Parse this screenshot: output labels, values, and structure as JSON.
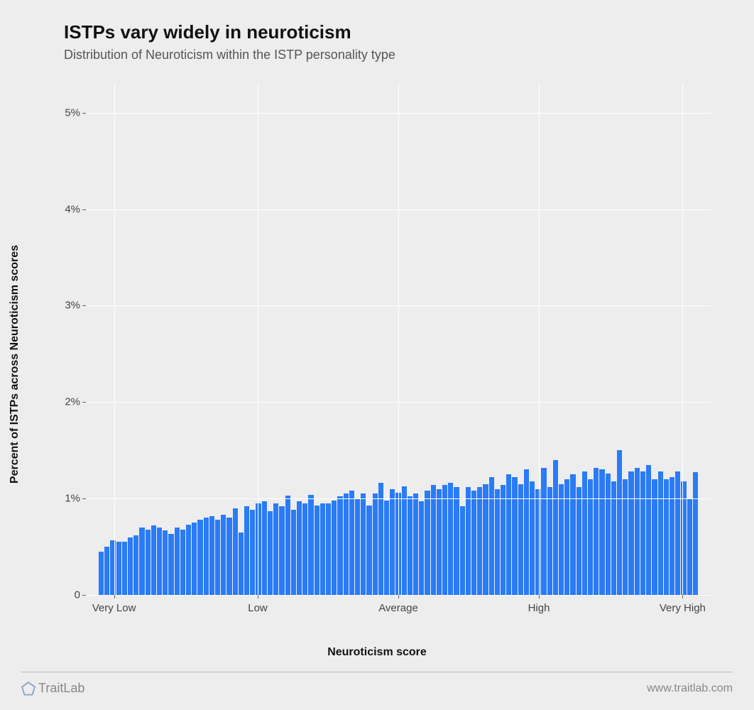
{
  "chart": {
    "type": "histogram",
    "title": "ISTPs vary widely in neuroticism",
    "subtitle": "Distribution of Neuroticism within the ISTP personality type",
    "xlabel": "Neuroticism score",
    "ylabel": "Percent of ISTPs across Neuroticism scores",
    "background_color": "#ededed",
    "grid_color": "#ffffff",
    "bar_color": "#2a7bf6",
    "text_color": "#111111",
    "tick_label_color": "#444444",
    "title_fontsize": 26,
    "subtitle_fontsize": 18,
    "label_fontsize": 16,
    "tick_fontsize": 15,
    "ylim": [
      0,
      5.3
    ],
    "yticks": [
      0,
      1,
      2,
      3,
      4,
      5
    ],
    "ytick_labels": [
      "0",
      "1%",
      "2%",
      "3%",
      "4%",
      "5%"
    ],
    "xtick_positions": [
      0.045,
      0.275,
      0.5,
      0.725,
      0.955
    ],
    "xtick_labels": [
      "Very Low",
      "Low",
      "Average",
      "High",
      "Very High"
    ],
    "values": [
      0.45,
      0.5,
      0.57,
      0.55,
      0.55,
      0.6,
      0.62,
      0.7,
      0.68,
      0.72,
      0.7,
      0.67,
      0.63,
      0.7,
      0.68,
      0.73,
      0.75,
      0.78,
      0.8,
      0.82,
      0.78,
      0.83,
      0.8,
      0.9,
      0.65,
      0.92,
      0.88,
      0.95,
      0.97,
      0.87,
      0.95,
      0.92,
      1.03,
      0.88,
      0.97,
      0.95,
      1.04,
      0.93,
      0.95,
      0.95,
      0.98,
      1.02,
      1.05,
      1.08,
      1.0,
      1.05,
      0.93,
      1.05,
      1.16,
      0.98,
      1.1,
      1.06,
      1.13,
      1.02,
      1.05,
      0.97,
      1.08,
      1.14,
      1.1,
      1.14,
      1.16,
      1.12,
      0.92,
      1.12,
      1.08,
      1.12,
      1.15,
      1.22,
      1.1,
      1.14,
      1.25,
      1.22,
      1.15,
      1.3,
      1.18,
      1.1,
      1.32,
      1.12,
      1.4,
      1.15,
      1.2,
      1.25,
      1.12,
      1.28,
      1.2,
      1.32,
      1.3,
      1.26,
      1.18,
      1.5,
      1.2,
      1.28,
      1.32,
      1.28,
      1.35,
      1.2,
      1.28,
      1.2,
      1.22,
      1.28,
      1.18,
      1.0,
      1.27
    ]
  },
  "footer": {
    "brand": "TraitLab",
    "url": "www.traitlab.com",
    "logo_color": "#8aa0c8",
    "divider_color": "#bbbbbb"
  }
}
